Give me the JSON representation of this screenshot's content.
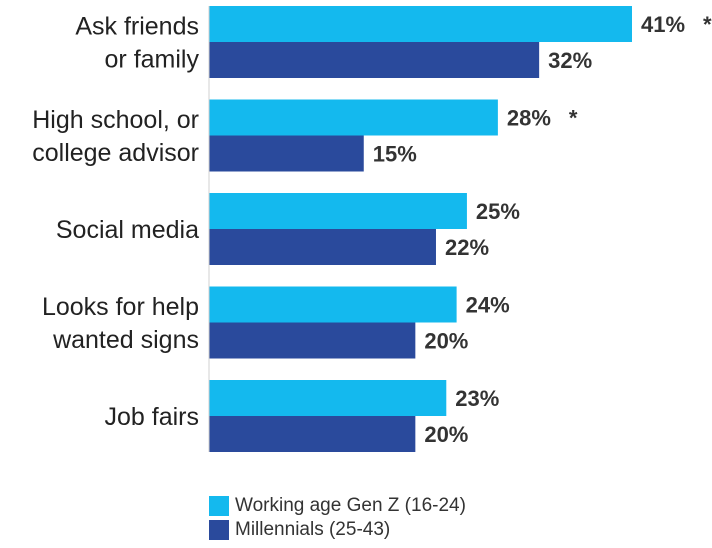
{
  "chart_data": {
    "type": "bar",
    "orientation": "horizontal",
    "categories": [
      [
        "Ask friends",
        "or family"
      ],
      [
        "High school, or",
        "college advisor"
      ],
      [
        "Social media"
      ],
      [
        "Looks for help",
        "wanted signs"
      ],
      [
        "Job fairs"
      ]
    ],
    "series": [
      {
        "name": "Working age Gen Z (16-24)",
        "color": "#14B9EE",
        "values": [
          41,
          28,
          25,
          24,
          23
        ],
        "labels": [
          "41%",
          "28%",
          "25%",
          "24%",
          "23%"
        ],
        "markers": [
          "*",
          "*",
          "",
          "",
          ""
        ]
      },
      {
        "name": "Millennials (25-43)",
        "color": "#2A4A9C",
        "values": [
          32,
          15,
          22,
          20,
          20
        ],
        "labels": [
          "32%",
          "15%",
          "22%",
          "20%",
          "20%"
        ],
        "markers": [
          "",
          "",
          "",
          "",
          ""
        ]
      }
    ],
    "xlim": [
      0,
      41
    ],
    "legend_position": "bottom",
    "grid": false
  }
}
